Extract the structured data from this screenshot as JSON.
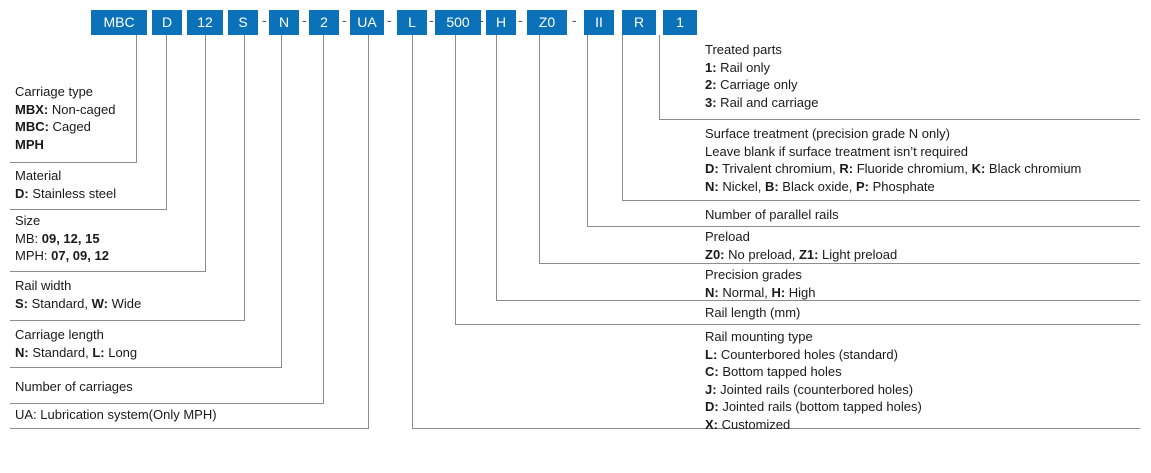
{
  "codes": [
    "MBC",
    "D",
    "12",
    "S",
    "N",
    "2",
    "UA",
    "L",
    "500",
    "H",
    "Z0",
    "II",
    "R",
    "1"
  ],
  "separator": "-",
  "left": {
    "carriage_type": {
      "title": "Carriage type",
      "mbx_code": "MBX:",
      "mbx_text": " Non-caged",
      "mbc_code": "MBC:",
      "mbc_text": " Caged",
      "mph_code": "MPH"
    },
    "material": {
      "title": "Material",
      "d_code": "D:",
      "d_text": " Stainless steel"
    },
    "size": {
      "title": "Size",
      "mb_prefix": "MB: ",
      "mb_values": "09, 12, 15",
      "mph_prefix": "MPH: ",
      "mph_values": "07, 09, 12"
    },
    "rail_width": {
      "title": "Rail width",
      "s_code": "S:",
      "s_text": " Standard, ",
      "w_code": "W:",
      "w_text": " Wide"
    },
    "carriage_length": {
      "title": "Carriage length",
      "n_code": "N:",
      "n_text": " Standard, ",
      "l_code": "L:",
      "l_text": " Long"
    },
    "num_carriages": {
      "title": "Number of carriages"
    },
    "lubrication": {
      "title": "UA: Lubrication system(Only MPH)"
    }
  },
  "right": {
    "treated_parts": {
      "title": "Treated parts",
      "c1": "1:",
      "t1": " Rail only",
      "c2": "2:",
      "t2": " Carriage only",
      "c3": "3:",
      "t3": " Rail and carriage"
    },
    "surface": {
      "title": "Surface treatment (precision grade N only)",
      "blank_note": "Leave blank if surface treatment isn’t required",
      "d_code": "D:",
      "d_text": " Trivalent chromium, ",
      "r_code": "R:",
      "r_text": " Fluoride chromium, ",
      "k_code": "K:",
      "k_text": " Black chromium",
      "n_code": "N:",
      "n_text": " Nickel, ",
      "b_code": "B:",
      "b_text": " Black oxide, ",
      "p_code": "P:",
      "p_text": " Phosphate"
    },
    "parallel": {
      "title": "Number of parallel rails"
    },
    "preload": {
      "title": "Preload",
      "z0_code": "Z0:",
      "z0_text": " No preload, ",
      "z1_code": "Z1:",
      "z1_text": " Light preload"
    },
    "precision": {
      "title": "Precision  grades",
      "n_code": "N:",
      "n_text": " Normal, ",
      "h_code": "H:",
      "h_text": " High"
    },
    "rail_length": {
      "title": "Rail length (mm)"
    },
    "mounting": {
      "title": "Rail mounting type",
      "l_code": "L:",
      "l_text": " Counterbored holes (standard)",
      "c_code": "C:",
      "c_text": " Bottom tapped holes",
      "j_code": "J:",
      "j_text": " Jointed rails (counterbored holes)",
      "d_code": "D:",
      "d_text": " Jointed rails (bottom tapped holes)",
      "x_code": "X:",
      "x_text": " Customized"
    }
  },
  "colors": {
    "box": "#0b72b9",
    "box_text": "#ffffff",
    "line": "#8c8c8c"
  }
}
